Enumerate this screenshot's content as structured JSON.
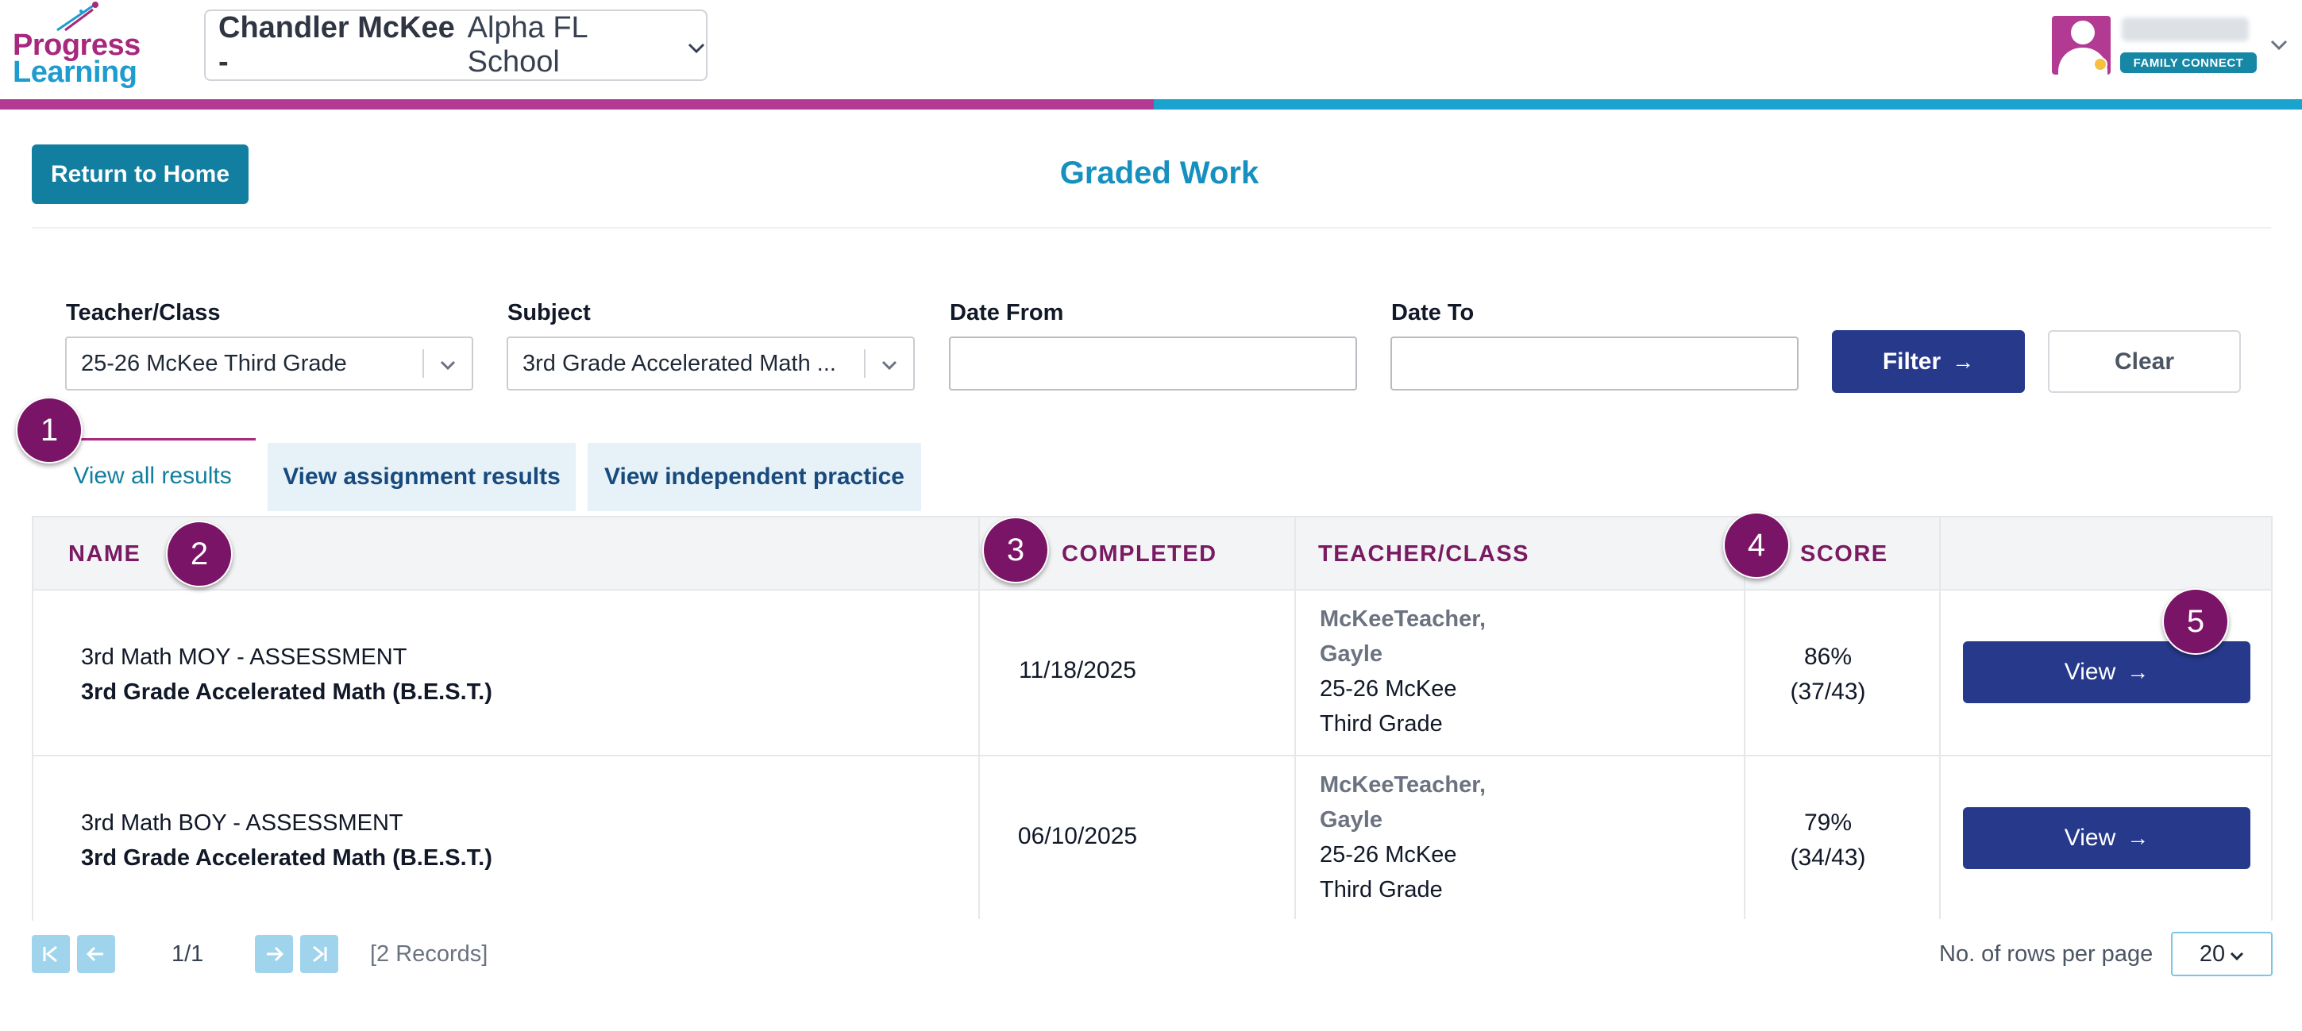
{
  "brand": {
    "line1": "Progress",
    "line2": "Learning"
  },
  "student_selector": {
    "name": "Chandler McKee -",
    "school": "Alpha FL School"
  },
  "user": {
    "badge": "FAMILY CONNECT"
  },
  "nav": {
    "return_home": "Return to Home"
  },
  "page": {
    "title": "Graded Work"
  },
  "filters": {
    "teacher_class": {
      "label": "Teacher/Class",
      "value": "25-26 McKee Third Grade"
    },
    "subject": {
      "label": "Subject",
      "value": "3rd Grade Accelerated Math ..."
    },
    "date_from": {
      "label": "Date From",
      "value": ""
    },
    "date_to": {
      "label": "Date To",
      "value": ""
    },
    "filter_button": "Filter",
    "clear_button": "Clear"
  },
  "tabs": [
    "View all results",
    "View assignment results",
    "View independent practice"
  ],
  "table": {
    "columns": [
      "NAME",
      "COMPLETED",
      "TEACHER/CLASS",
      "SCORE"
    ],
    "rows": [
      {
        "name": "3rd Math MOY - ASSESSMENT",
        "subject": "3rd Grade Accelerated Math (B.E.S.T.)",
        "completed": "11/18/2025",
        "teacher_line1": "McKeeTeacher,",
        "teacher_line2": "Gayle",
        "class_line1": "25-26 McKee",
        "class_line2": "Third Grade",
        "score_pct": "86%",
        "score_frac": "(37/43)",
        "action": "View"
      },
      {
        "name": "3rd Math BOY - ASSESSMENT",
        "subject": "3rd Grade Accelerated Math (B.E.S.T.)",
        "completed": "06/10/2025",
        "teacher_line1": "McKeeTeacher,",
        "teacher_line2": "Gayle",
        "class_line1": "25-26 McKee",
        "class_line2": "Third Grade",
        "score_pct": "79%",
        "score_frac": "(34/43)",
        "action": "View"
      }
    ]
  },
  "pagination": {
    "page": "1/1",
    "records": "[2 Records]",
    "rows_label": "No. of rows per page",
    "rows_value": "20"
  },
  "annotations": [
    "1",
    "2",
    "3",
    "4",
    "5"
  ],
  "colors": {
    "accent_pink": "#b33a93",
    "accent_blue": "#1aa3cf",
    "primary": "#27398b",
    "teal": "#137fa0",
    "badge": "#7a1466"
  }
}
